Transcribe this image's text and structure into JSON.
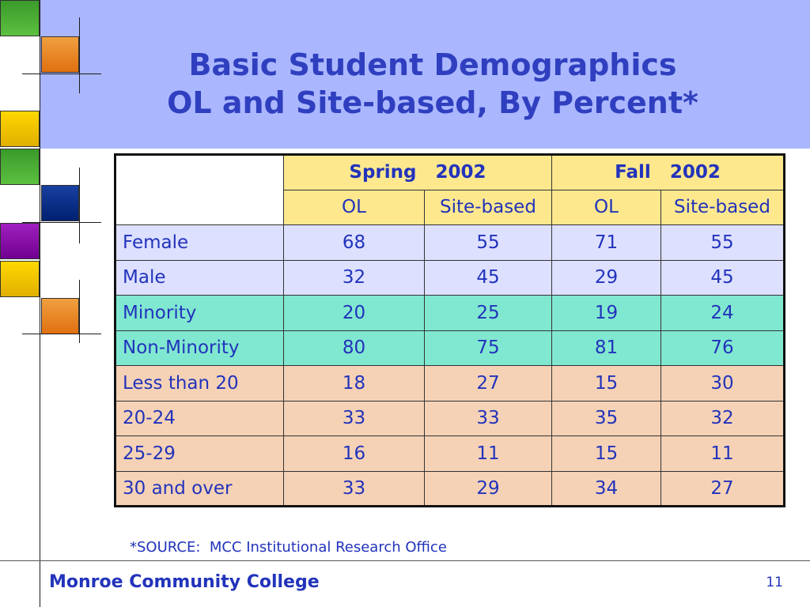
{
  "slide": {
    "title_line1": "Basic Student Demographics",
    "title_line2": "OL and Site-based, By Percent*",
    "source_note": "*SOURCE:  MCC Institutional Research Office",
    "footer_college": "Monroe Community College",
    "page_number": "11"
  },
  "table": {
    "terms": [
      "Spring   2002",
      "Fall   2002"
    ],
    "subheaders": [
      "OL",
      "Site-based",
      "OL",
      "Site-based"
    ],
    "rows": [
      {
        "label": "Female",
        "values": [
          "68",
          "55",
          "71",
          "55"
        ]
      },
      {
        "label": "Male",
        "values": [
          "32",
          "45",
          "29",
          "45"
        ]
      },
      {
        "label": "Minority",
        "values": [
          "20",
          "25",
          "19",
          "24"
        ]
      },
      {
        "label": "Non-Minority",
        "values": [
          "80",
          "75",
          "81",
          "76"
        ]
      },
      {
        "label": "Less than 20",
        "values": [
          "18",
          "27",
          "15",
          "30"
        ]
      },
      {
        "label": "20-24",
        "values": [
          "33",
          "33",
          "35",
          "32"
        ]
      },
      {
        "label": "25-29",
        "values": [
          "16",
          "11",
          "15",
          "11"
        ]
      },
      {
        "label": "30 and over",
        "values": [
          "33",
          "29",
          "34",
          "27"
        ]
      }
    ]
  },
  "colors": {
    "header_band": "#aab7ff",
    "title_text": "#2f3fbf",
    "table_header": "#fde88e",
    "gender_rows": "#dde0ff",
    "minority_rows": "#80e8d0",
    "age_rows": "#f5d2b6",
    "body_text": "#2233bb"
  }
}
